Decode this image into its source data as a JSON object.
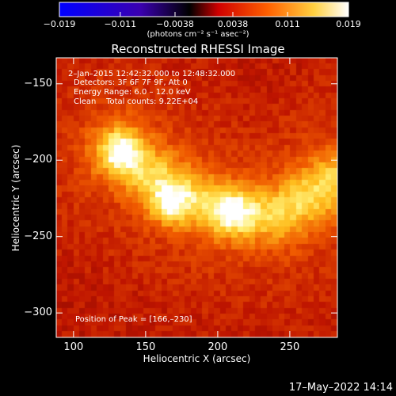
{
  "chart_data": {
    "type": "heatmap",
    "title": "Reconstructed RHESSI Image",
    "xlabel": "Heliocentric X (arcsec)",
    "ylabel": "Heliocentric Y (arcsec)",
    "xlim": [
      88,
      283
    ],
    "ylim": [
      -316,
      -133
    ],
    "x_ticks": [
      100,
      150,
      200,
      250
    ],
    "y_ticks": [
      -150,
      -200,
      -250,
      -300
    ],
    "colorbar": {
      "range": [
        -0.019,
        0.019
      ],
      "tick_values": [
        -0.019,
        -0.011,
        -0.0038,
        0.0038,
        0.011,
        0.019
      ],
      "tick_labels": [
        "−0.019",
        "−0.011",
        "−0.0038",
        "0.0038",
        "0.011",
        "0.019"
      ],
      "unit_label": "(photons cm⁻² s⁻¹ asec⁻²)",
      "colors": [
        "#0000ff",
        "#3000a0",
        "#000000",
        "#ff0000",
        "#ff7000",
        "#ffff80",
        "#ffffff"
      ]
    },
    "annotations": {
      "time_range": "2–Jan–2015 12:42:32.000 to 12:48:32.000",
      "detectors": "Detectors: 3F 6F 7F 9F, Att 0",
      "energy_range": "Energy Range: 6.0 – 12.0 keV",
      "clean_line": "Clean    Total counts: 9.22E+04",
      "peak": "Position of Peak = [166,–230]"
    },
    "peak_position": [
      166,
      -230
    ],
    "sources": [
      {
        "x": 166,
        "y": -230,
        "intensity": 1.0
      },
      {
        "x": 210,
        "y": -234,
        "intensity": 0.85
      },
      {
        "x": 135,
        "y": -195,
        "intensity": 0.75
      }
    ],
    "footer_timestamp": "17–May–2022 14:14"
  }
}
